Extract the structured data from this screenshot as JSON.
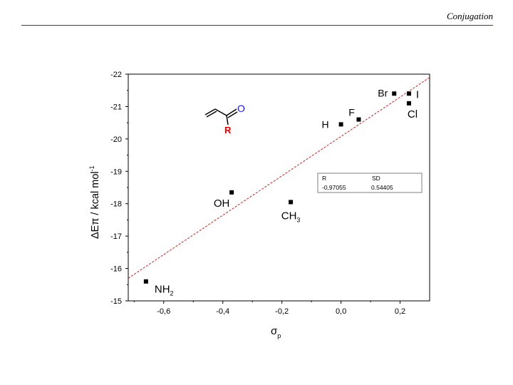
{
  "header": {
    "title": "Conjugation"
  },
  "chart_data": {
    "type": "scatter",
    "title": "",
    "xlabel_symbol": "σ",
    "xlabel_subscript": "p",
    "ylabel_prefix": "ΔEπ / kcal mol",
    "ylabel_superscript": "-1",
    "xlim": [
      -0.72,
      0.3
    ],
    "ylim": [
      -15,
      -22
    ],
    "x_ticks": [
      -0.6,
      -0.4,
      -0.2,
      0.0,
      0.2
    ],
    "x_tick_labels": [
      "-0,6",
      "-0,4",
      "-0,2",
      "0,0",
      "0,2"
    ],
    "y_ticks": [
      -15,
      -16,
      -17,
      -18,
      -19,
      -20,
      -21,
      -22
    ],
    "y_tick_labels": [
      "-15",
      "-16",
      "-17",
      "-18",
      "-19",
      "-20",
      "-21",
      "-22"
    ],
    "points": [
      {
        "label": "NH",
        "sub": "2",
        "x": -0.66,
        "y": -15.6
      },
      {
        "label": "OH",
        "sub": "",
        "x": -0.37,
        "y": -18.35
      },
      {
        "label": "CH",
        "sub": "3",
        "x": -0.17,
        "y": -18.05
      },
      {
        "label": "H",
        "sub": "",
        "x": 0.0,
        "y": -20.45
      },
      {
        "label": "F",
        "sub": "",
        "x": 0.06,
        "y": -20.6
      },
      {
        "label": "Br",
        "sub": "",
        "x": 0.18,
        "y": -21.4
      },
      {
        "label": "I",
        "sub": "",
        "x": 0.23,
        "y": -21.4
      },
      {
        "label": "Cl",
        "sub": "",
        "x": 0.23,
        "y": -21.1
      }
    ],
    "fit_line": {
      "x": [
        -0.72,
        0.3
      ],
      "y": [
        -15.7,
        -21.9
      ],
      "color": "#cc2222"
    },
    "stats_box": {
      "headers": [
        "R",
        "SD"
      ],
      "values": [
        "-0,97055",
        "0.54405"
      ]
    },
    "molecule": {
      "carbonyl_atom": "O",
      "substituent": "R",
      "o_color": "#1a1aff",
      "r_color": "#dd0000"
    },
    "marker_color": "#000000",
    "grid": false
  }
}
